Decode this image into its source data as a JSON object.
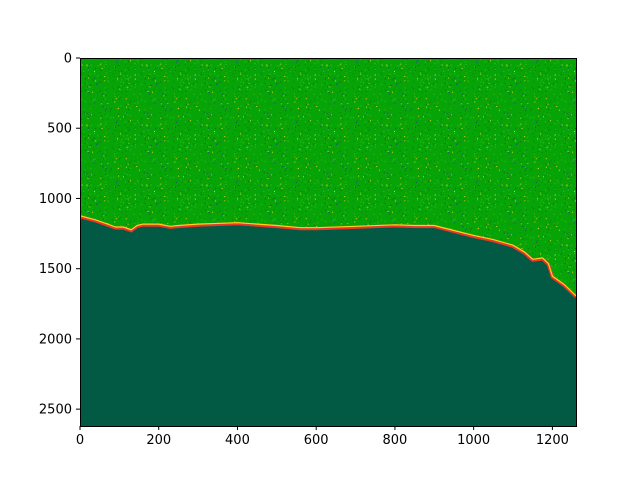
{
  "chart_data": {
    "type": "heatmap",
    "title": "",
    "xlabel": "",
    "ylabel": "",
    "xlim": [
      0,
      1260
    ],
    "ylim": [
      2620,
      0
    ],
    "y_axis_inverted": true,
    "x_ticks": [
      0,
      200,
      400,
      600,
      800,
      1000,
      1200
    ],
    "y_ticks": [
      0,
      500,
      1000,
      1500,
      2000,
      2500
    ],
    "x_tick_labels": [
      "0",
      "200",
      "400",
      "600",
      "800",
      "1000",
      "1200"
    ],
    "y_tick_labels": [
      "0",
      "500",
      "1000",
      "1500",
      "2000",
      "2500"
    ],
    "colors": {
      "upper_region": "#06a406",
      "upper_region_speckle_dark": "#04800a",
      "upper_region_speckle_light": "#3fbf1a",
      "upper_region_speckle_blue": "#1e3a8a",
      "upper_region_speckle_yellow": "#d8d020",
      "lower_region": "#025a45",
      "boundary_inner": "#ffd21f",
      "boundary_outer": "#e8362a"
    },
    "boundary": {
      "x": [
        0,
        40,
        70,
        90,
        110,
        130,
        145,
        160,
        200,
        230,
        250,
        300,
        400,
        500,
        560,
        600,
        700,
        800,
        850,
        900,
        950,
        1000,
        1050,
        1100,
        1130,
        1150,
        1175,
        1190,
        1200,
        1230,
        1260
      ],
      "y": [
        1130,
        1160,
        1190,
        1210,
        1210,
        1230,
        1200,
        1190,
        1190,
        1205,
        1200,
        1190,
        1180,
        1200,
        1215,
        1215,
        1205,
        1195,
        1200,
        1200,
        1235,
        1270,
        1300,
        1340,
        1390,
        1440,
        1430,
        1470,
        1560,
        1620,
        1700
      ]
    }
  }
}
